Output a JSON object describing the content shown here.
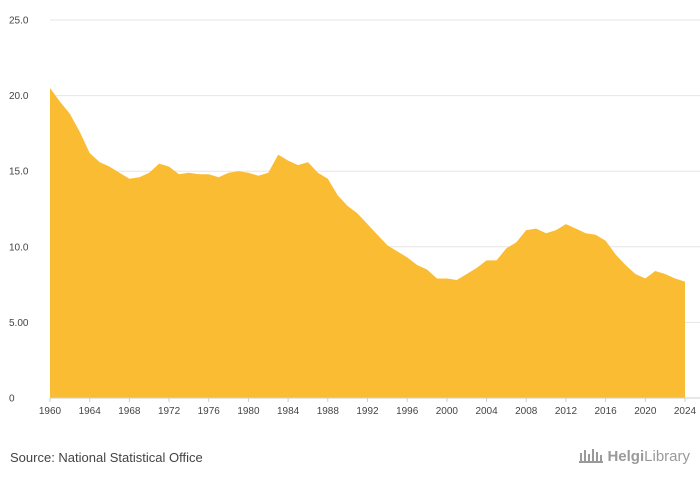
{
  "source_text": "Source: National Statistical Office",
  "logo": {
    "part1": "Helgi",
    "part2": "Library"
  },
  "colors": {
    "area": "#f9bc33",
    "grid": "#e6e6e6",
    "text": "#444444",
    "logo": "#9a9a9a"
  },
  "chart_data": {
    "type": "area",
    "title": "",
    "xlabel": "",
    "ylabel": "",
    "xlim": [
      1960,
      2024
    ],
    "ylim": [
      0,
      25
    ],
    "grid": true,
    "legend": "none",
    "y_ticks": [
      "0",
      "5.00",
      "10.0",
      "15.0",
      "20.0",
      "25.0"
    ],
    "y_tick_values": [
      0,
      5,
      10,
      15,
      20,
      25
    ],
    "x_ticks": [
      "1960",
      "1964",
      "1968",
      "1972",
      "1976",
      "1980",
      "1984",
      "1988",
      "1992",
      "1996",
      "2000",
      "2004",
      "2008",
      "2012",
      "2016",
      "2020",
      "2024"
    ],
    "x_tick_values": [
      1960,
      1964,
      1968,
      1972,
      1976,
      1980,
      1984,
      1988,
      1992,
      1996,
      2000,
      2004,
      2008,
      2012,
      2016,
      2020,
      2024
    ],
    "series": [
      {
        "x": [
          1960,
          1961,
          1962,
          1963,
          1964,
          1965,
          1966,
          1967,
          1968,
          1969,
          1970,
          1971,
          1972,
          1973,
          1974,
          1975,
          1976,
          1977,
          1978,
          1979,
          1980,
          1981,
          1982,
          1983,
          1984,
          1985,
          1986,
          1987,
          1988,
          1989,
          1990,
          1991,
          1992,
          1993,
          1994,
          1995,
          1996,
          1997,
          1998,
          1999,
          2000,
          2001,
          2002,
          2003,
          2004,
          2005,
          2006,
          2007,
          2008,
          2009,
          2010,
          2011,
          2012,
          2013,
          2014,
          2015,
          2016,
          2017,
          2018,
          2019,
          2020,
          2021,
          2022,
          2023,
          2024
        ],
        "values": [
          20.5,
          19.6,
          18.8,
          17.6,
          16.2,
          15.6,
          15.3,
          14.9,
          14.5,
          14.6,
          14.9,
          15.5,
          15.3,
          14.8,
          14.9,
          14.8,
          14.8,
          14.6,
          14.9,
          15.0,
          14.9,
          14.7,
          14.9,
          16.1,
          15.7,
          15.4,
          15.6,
          14.9,
          14.5,
          13.4,
          12.7,
          12.2,
          11.5,
          10.8,
          10.1,
          9.7,
          9.3,
          8.8,
          8.5,
          7.9,
          7.9,
          7.8,
          8.2,
          8.6,
          9.1,
          9.1,
          9.9,
          10.3,
          11.1,
          11.2,
          10.9,
          11.1,
          11.5,
          11.2,
          10.9,
          10.8,
          10.4,
          9.5,
          8.8,
          8.2,
          7.9,
          8.4,
          8.2,
          7.9,
          7.7
        ]
      }
    ]
  }
}
